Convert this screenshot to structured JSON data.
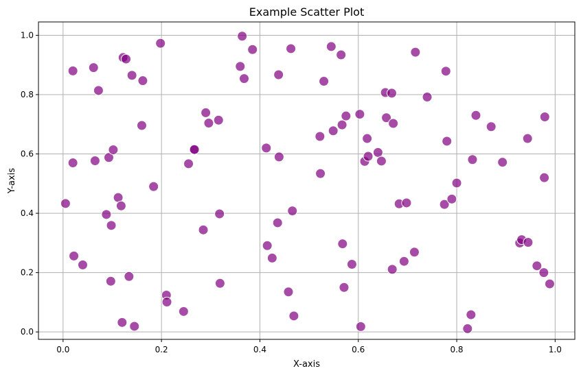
{
  "chart_data": {
    "type": "scatter",
    "title": "Example Scatter Plot",
    "xlabel": "X-axis",
    "ylabel": "Y-axis",
    "xlim": [
      -0.05,
      1.04
    ],
    "ylim": [
      -0.025,
      1.045
    ],
    "xticks": [
      0.0,
      0.2,
      0.4,
      0.6,
      0.8,
      1.0
    ],
    "xtick_labels": [
      "0.0",
      "0.2",
      "0.4",
      "0.6",
      "0.8",
      "1.0"
    ],
    "yticks": [
      0.0,
      0.2,
      0.4,
      0.6,
      0.8,
      1.0
    ],
    "ytick_labels": [
      "0.0",
      "0.2",
      "0.4",
      "0.6",
      "0.8",
      "1.0"
    ],
    "grid": true,
    "marker_color": "#800080",
    "marker_alpha": 0.7,
    "points": [
      [
        0.005,
        0.433
      ],
      [
        0.02,
        0.88
      ],
      [
        0.02,
        0.57
      ],
      [
        0.022,
        0.256
      ],
      [
        0.04,
        0.226
      ],
      [
        0.062,
        0.891
      ],
      [
        0.065,
        0.577
      ],
      [
        0.072,
        0.814
      ],
      [
        0.088,
        0.396
      ],
      [
        0.093,
        0.588
      ],
      [
        0.097,
        0.171
      ],
      [
        0.098,
        0.359
      ],
      [
        0.102,
        0.614
      ],
      [
        0.112,
        0.453
      ],
      [
        0.118,
        0.425
      ],
      [
        0.12,
        0.032
      ],
      [
        0.122,
        0.925
      ],
      [
        0.128,
        0.92
      ],
      [
        0.134,
        0.187
      ],
      [
        0.14,
        0.865
      ],
      [
        0.145,
        0.019
      ],
      [
        0.16,
        0.696
      ],
      [
        0.162,
        0.847
      ],
      [
        0.184,
        0.49
      ],
      [
        0.198,
        0.973
      ],
      [
        0.21,
        0.124
      ],
      [
        0.211,
        0.101
      ],
      [
        0.245,
        0.069
      ],
      [
        0.255,
        0.567
      ],
      [
        0.266,
        0.614
      ],
      [
        0.267,
        0.615
      ],
      [
        0.285,
        0.344
      ],
      [
        0.29,
        0.739
      ],
      [
        0.296,
        0.704
      ],
      [
        0.316,
        0.714
      ],
      [
        0.318,
        0.398
      ],
      [
        0.319,
        0.164
      ],
      [
        0.36,
        0.895
      ],
      [
        0.364,
        0.997
      ],
      [
        0.368,
        0.854
      ],
      [
        0.385,
        0.952
      ],
      [
        0.413,
        0.62
      ],
      [
        0.415,
        0.291
      ],
      [
        0.425,
        0.249
      ],
      [
        0.436,
        0.368
      ],
      [
        0.438,
        0.867
      ],
      [
        0.439,
        0.59
      ],
      [
        0.458,
        0.135
      ],
      [
        0.463,
        0.955
      ],
      [
        0.466,
        0.408
      ],
      [
        0.469,
        0.054
      ],
      [
        0.522,
        0.659
      ],
      [
        0.523,
        0.534
      ],
      [
        0.53,
        0.845
      ],
      [
        0.545,
        0.962
      ],
      [
        0.549,
        0.678
      ],
      [
        0.565,
        0.934
      ],
      [
        0.567,
        0.698
      ],
      [
        0.568,
        0.297
      ],
      [
        0.571,
        0.15
      ],
      [
        0.575,
        0.728
      ],
      [
        0.587,
        0.228
      ],
      [
        0.603,
        0.734
      ],
      [
        0.605,
        0.018
      ],
      [
        0.613,
        0.575
      ],
      [
        0.618,
        0.652
      ],
      [
        0.62,
        0.592
      ],
      [
        0.64,
        0.605
      ],
      [
        0.647,
        0.576
      ],
      [
        0.655,
        0.807
      ],
      [
        0.657,
        0.722
      ],
      [
        0.668,
        0.805
      ],
      [
        0.669,
        0.211
      ],
      [
        0.671,
        0.703
      ],
      [
        0.683,
        0.432
      ],
      [
        0.693,
        0.238
      ],
      [
        0.698,
        0.435
      ],
      [
        0.714,
        0.269
      ],
      [
        0.716,
        0.943
      ],
      [
        0.74,
        0.792
      ],
      [
        0.775,
        0.43
      ],
      [
        0.778,
        0.879
      ],
      [
        0.78,
        0.643
      ],
      [
        0.79,
        0.448
      ],
      [
        0.8,
        0.502
      ],
      [
        0.822,
        0.011
      ],
      [
        0.829,
        0.058
      ],
      [
        0.832,
        0.581
      ],
      [
        0.839,
        0.73
      ],
      [
        0.87,
        0.692
      ],
      [
        0.893,
        0.572
      ],
      [
        0.928,
        0.3
      ],
      [
        0.932,
        0.311
      ],
      [
        0.944,
        0.652
      ],
      [
        0.945,
        0.302
      ],
      [
        0.963,
        0.223
      ],
      [
        0.977,
        0.2
      ],
      [
        0.978,
        0.52
      ],
      [
        0.979,
        0.725
      ],
      [
        0.989,
        0.162
      ]
    ]
  }
}
